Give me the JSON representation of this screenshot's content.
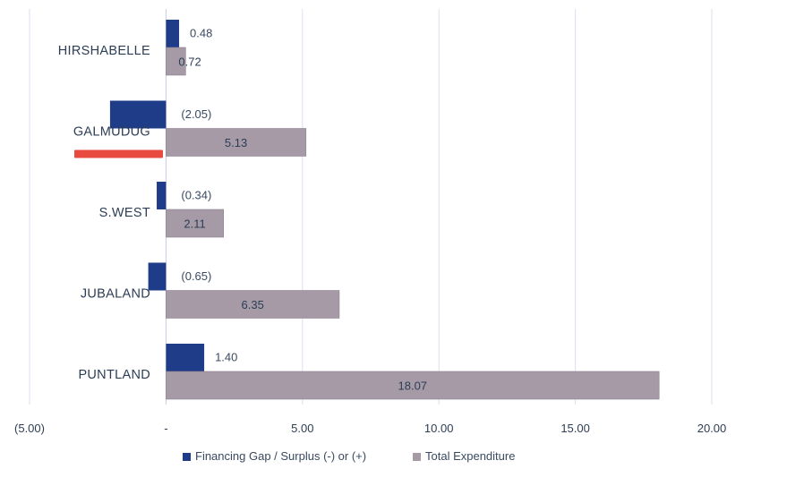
{
  "chart_data": {
    "type": "bar",
    "orientation": "horizontal",
    "title": "",
    "xlabel": "",
    "ylabel": "",
    "categories": [
      "HIRSHABELLE",
      "GALMUDUG",
      "S.WEST",
      "JUBALAND",
      "PUNTLAND"
    ],
    "series": [
      {
        "name": "Financing Gap / Surplus (-) or (+)",
        "color": "#1f3c88",
        "values": [
          0.48,
          -2.05,
          -0.34,
          -0.65,
          1.4
        ],
        "labels": [
          "0.48",
          "(2.05)",
          "(0.34)",
          "(0.65)",
          "1.40"
        ]
      },
      {
        "name": "Total Expenditure",
        "color": "#a59aa6",
        "values": [
          0.72,
          5.13,
          2.11,
          6.35,
          18.07
        ],
        "labels": [
          "0.72",
          "5.13",
          "2.11",
          "6.35",
          "18.07"
        ]
      }
    ],
    "xlim": [
      -5,
      20
    ],
    "xticks": [
      -5,
      0,
      5,
      10,
      15,
      20
    ],
    "xtick_labels": [
      "(5.00)",
      "-",
      "5.00",
      "10.00",
      "15.00",
      "20.00"
    ],
    "grid": "vertical",
    "legend": "bottom-center",
    "annotation": {
      "type": "red-underline",
      "category": "GALMUDUG",
      "color": "#e84a3f"
    }
  }
}
